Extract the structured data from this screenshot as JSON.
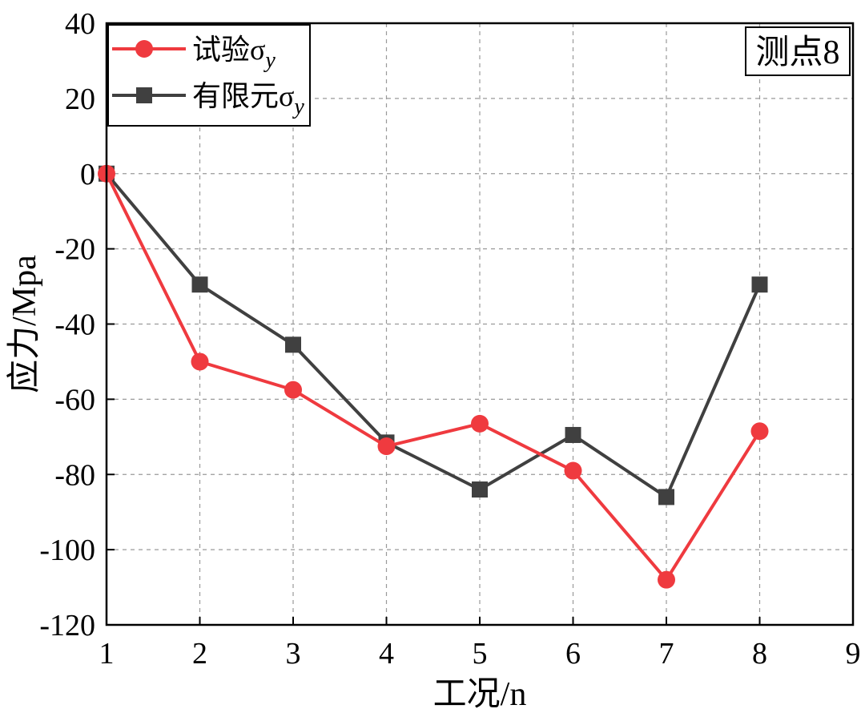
{
  "chart_data": {
    "type": "line",
    "title": "",
    "xlabel": "工况/n",
    "ylabel": "应力/Mpa",
    "xlim": [
      1,
      9
    ],
    "ylim": [
      -120,
      40
    ],
    "x_ticks": [
      1,
      2,
      3,
      4,
      5,
      6,
      7,
      8,
      9
    ],
    "y_ticks": [
      -120,
      -100,
      -80,
      -60,
      -40,
      -20,
      0,
      20,
      40
    ],
    "grid": true,
    "legend_position": "top-left",
    "annotation": "测点8",
    "series": [
      {
        "name": "试验σy",
        "label_main": "试验σ",
        "label_sub": "y",
        "color": "#ef3a3f",
        "marker": "circle",
        "x": [
          1,
          2,
          3,
          4,
          5,
          6,
          7,
          8
        ],
        "values": [
          0,
          -50,
          -57.5,
          -72.5,
          -66.5,
          -79,
          -108,
          -68.5
        ]
      },
      {
        "name": "有限元σy",
        "label_main": "有限元σ",
        "label_sub": "y",
        "color": "#404040",
        "marker": "square",
        "x": [
          1,
          2,
          3,
          4,
          5,
          6,
          7,
          8
        ],
        "values": [
          0,
          -29.5,
          -45.5,
          -71.5,
          -84,
          -69.5,
          -86,
          -29.5
        ]
      }
    ]
  }
}
